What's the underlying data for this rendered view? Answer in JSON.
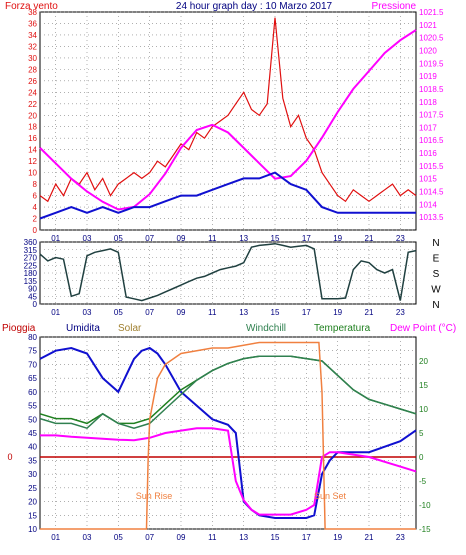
{
  "header": {
    "left_title": "Forza vento",
    "center_title": "24 hour graph day : 10 Marzo 2017",
    "right_title": "Pressione"
  },
  "colors": {
    "wind": "#e01010",
    "gust": "#e01010",
    "pressure": "#ff00ff",
    "avg_wind": "#1010d0",
    "direction": "#204040",
    "rain": "#c00000",
    "humidity": "#1010d0",
    "solar": "#f08040",
    "windchill": "#308050",
    "temperature": "#208020",
    "dewpoint": "#ff00ff",
    "grid": "#808080",
    "axis_text": "#000080"
  },
  "chart_data": [
    {
      "type": "line",
      "title": "24 hour graph day : 10 Marzo 2017",
      "x_ticks": [
        "01",
        "03",
        "05",
        "07",
        "09",
        "11",
        "13",
        "15",
        "17",
        "19",
        "21",
        "23"
      ],
      "xlim": [
        0,
        24
      ],
      "left_axis": {
        "label": "Forza vento",
        "ylim": [
          0,
          38
        ],
        "ticks": [
          "0",
          "2",
          "4",
          "6",
          "8",
          "10",
          "12",
          "14",
          "16",
          "18",
          "20",
          "22",
          "24",
          "26",
          "28",
          "30",
          "32",
          "34",
          "36",
          "38"
        ]
      },
      "right_axis": {
        "label": "Pressione",
        "ylim": [
          1013.0,
          1021.5
        ],
        "ticks": [
          "1013.5",
          "1014",
          "1014.5",
          "1015",
          "1015.5",
          "1016",
          "1016.5",
          "1017",
          "1017.5",
          "1018",
          "1018.5",
          "1019",
          "1019.5",
          "1020",
          "1020.5",
          "1021",
          "1021.5"
        ]
      },
      "series": [
        {
          "name": "Forza vento",
          "axis": "left",
          "style": "gust",
          "x": [
            0,
            0.5,
            1,
            1.5,
            2,
            2.5,
            3,
            3.5,
            4,
            4.5,
            5,
            5.5,
            6,
            6.5,
            7,
            7.5,
            8,
            8.5,
            9,
            9.5,
            10,
            10.5,
            11,
            11.5,
            12,
            12.5,
            13,
            13.5,
            14,
            14.5,
            15,
            15.5,
            16,
            16.5,
            17,
            17.5,
            18,
            18.5,
            19,
            19.5,
            20,
            20.5,
            21,
            21.5,
            22,
            22.5,
            23,
            23.5,
            24
          ],
          "values": [
            6,
            5,
            8,
            6,
            9,
            8,
            10,
            7,
            9,
            6,
            8,
            9,
            10,
            9,
            10,
            12,
            11,
            13,
            15,
            14,
            17,
            16,
            18,
            19,
            20,
            22,
            24,
            21,
            20,
            22,
            37,
            23,
            18,
            20,
            16,
            14,
            10,
            8,
            6,
            5,
            7,
            6,
            5,
            6,
            7,
            8,
            6,
            7,
            6
          ]
        },
        {
          "name": "Pressione",
          "axis": "right",
          "x": [
            0,
            1,
            2,
            3,
            4,
            5,
            6,
            7,
            8,
            9,
            10,
            11,
            12,
            13,
            14,
            15,
            16,
            17,
            18,
            19,
            20,
            21,
            22,
            23,
            24
          ],
          "values": [
            1016.2,
            1015.6,
            1015.0,
            1014.5,
            1014.1,
            1013.8,
            1013.9,
            1014.4,
            1015.2,
            1016.2,
            1016.9,
            1017.1,
            1016.8,
            1016.2,
            1015.6,
            1015.0,
            1015.1,
            1015.7,
            1016.6,
            1017.6,
            1018.5,
            1019.2,
            1019.9,
            1020.4,
            1020.8
          ]
        },
        {
          "name": "",
          "axis": "left",
          "style": "avg",
          "x": [
            0,
            1,
            2,
            3,
            4,
            5,
            6,
            7,
            8,
            9,
            10,
            11,
            12,
            13,
            14,
            15,
            16,
            17,
            18,
            19,
            20,
            21,
            22,
            23,
            24
          ],
          "values": [
            2,
            3,
            4,
            3,
            4,
            3,
            4,
            4,
            5,
            6,
            6,
            7,
            8,
            9,
            9,
            10,
            8,
            7,
            4,
            3,
            3,
            3,
            3,
            3,
            3
          ]
        }
      ]
    },
    {
      "type": "line",
      "x_ticks": [
        "01",
        "03",
        "05",
        "07",
        "09",
        "11",
        "13",
        "15",
        "17",
        "19",
        "21",
        "23"
      ],
      "xlim": [
        0,
        24
      ],
      "left_axis": {
        "ylim": [
          0,
          360
        ],
        "ticks": [
          "0",
          "45",
          "90",
          "135",
          "180",
          "225",
          "270",
          "315",
          "360"
        ]
      },
      "right_axis_labels": [
        "N",
        "W",
        "S",
        "E",
        "N"
      ],
      "series": [
        {
          "name": "",
          "x": [
            0,
            0.5,
            1,
            1.5,
            2,
            2.5,
            3,
            3.5,
            4,
            4.5,
            5,
            5.5,
            6,
            6.5,
            7,
            7.5,
            8,
            8.5,
            9,
            9.5,
            10,
            10.5,
            11,
            11.5,
            12,
            12.5,
            13,
            13.5,
            14,
            14.5,
            15,
            15.5,
            16,
            16.5,
            17,
            17.5,
            18,
            18.5,
            19,
            19.5,
            20,
            20.5,
            21,
            21.5,
            22,
            22.5,
            23,
            23.5,
            24
          ],
          "values": [
            290,
            250,
            270,
            260,
            45,
            60,
            280,
            300,
            310,
            320,
            300,
            40,
            30,
            20,
            35,
            50,
            70,
            90,
            110,
            130,
            150,
            160,
            180,
            200,
            210,
            220,
            240,
            330,
            340,
            345,
            350,
            340,
            330,
            335,
            340,
            320,
            30,
            30,
            30,
            35,
            200,
            250,
            240,
            200,
            180,
            200,
            20,
            300,
            310
          ]
        }
      ]
    },
    {
      "type": "line",
      "x_ticks": [
        "01",
        "03",
        "05",
        "07",
        "09",
        "11",
        "13",
        "15",
        "17",
        "19",
        "21",
        "23"
      ],
      "xlim": [
        0,
        24
      ],
      "left_axis": {
        "ylim": [
          10,
          80
        ],
        "ticks": [
          "10",
          "15",
          "20",
          "25",
          "30",
          "35",
          "40",
          "45",
          "50",
          "55",
          "60",
          "65",
          "70",
          "75",
          "80"
        ]
      },
      "right_axis": {
        "label": "Dew Point (°C)",
        "ylim": [
          -15,
          25
        ],
        "ticks": [
          "-15",
          "-10",
          "-5",
          "0",
          "5",
          "10",
          "15",
          "20"
        ]
      },
      "legend": [
        "Pioggia",
        "Umidita",
        "Solar",
        "Windchill",
        "Temperatura",
        "Dew Point (°C)"
      ],
      "annotations": [
        "Sun Rise",
        "Sun Set"
      ],
      "rain_zero_label": "0",
      "series": [
        {
          "name": "Umidita",
          "axis": "left",
          "x": [
            0,
            1,
            2,
            3,
            4,
            5,
            6,
            6.5,
            7,
            7.5,
            8,
            9,
            10,
            11,
            12,
            12.5,
            13,
            13.5,
            14,
            15,
            16,
            17,
            17.5,
            18,
            18.5,
            19,
            20,
            21,
            22,
            23,
            24
          ],
          "values": [
            72,
            75,
            76,
            74,
            65,
            60,
            72,
            75,
            76,
            74,
            70,
            60,
            55,
            50,
            48,
            45,
            20,
            17,
            15,
            14,
            14,
            14,
            15,
            30,
            35,
            38,
            38,
            38,
            40,
            42,
            46
          ]
        },
        {
          "name": "Temperatura",
          "axis": "right",
          "x": [
            0,
            1,
            2,
            3,
            4,
            5,
            6,
            7,
            8,
            9,
            10,
            11,
            12,
            13,
            14,
            15,
            16,
            17,
            18,
            19,
            20,
            21,
            22,
            23,
            24
          ],
          "values": [
            9,
            8,
            8,
            7,
            9,
            7,
            7,
            8,
            11,
            14,
            16,
            18,
            19.5,
            20.5,
            21,
            21,
            21,
            20.5,
            20,
            17,
            14,
            12,
            11,
            10,
            9
          ]
        },
        {
          "name": "Windchill",
          "axis": "right",
          "x": [
            0,
            1,
            2,
            3,
            4,
            5,
            6,
            7,
            8,
            9,
            10,
            11,
            12,
            13,
            14,
            15,
            16,
            17,
            18,
            19,
            20,
            21,
            22,
            23,
            24
          ],
          "values": [
            8,
            7,
            7,
            6,
            9,
            7,
            6,
            7,
            10,
            13,
            16,
            18,
            19.5,
            20.5,
            21,
            21,
            21,
            20.5,
            20,
            17,
            14,
            12,
            11,
            10,
            9
          ]
        },
        {
          "name": "Dew Point (°C)",
          "axis": "right",
          "x": [
            0,
            1,
            2,
            3,
            4,
            5,
            6,
            7,
            8,
            9,
            10,
            11,
            12,
            12.5,
            13,
            13.5,
            14,
            15,
            16,
            17,
            17.5,
            18,
            18.5,
            19,
            20,
            21,
            22,
            23,
            24
          ],
          "values": [
            4.5,
            4.5,
            4.2,
            4,
            3.8,
            3.6,
            3.5,
            4,
            5,
            5.5,
            6,
            6,
            5.5,
            -5,
            -9,
            -11,
            -12,
            -12,
            -12,
            -11,
            -10,
            0,
            1,
            1,
            0.5,
            0,
            -1,
            -2,
            -3
          ]
        },
        {
          "name": "Solar",
          "axis": "left",
          "x": [
            0,
            6.8,
            6.9,
            7,
            7.5,
            8,
            9,
            10,
            11,
            12,
            13,
            14,
            15,
            16,
            17,
            17.8,
            18,
            18.2,
            18.5,
            24
          ],
          "values": [
            10,
            10,
            35,
            50,
            65,
            70,
            74,
            75,
            76,
            76,
            77,
            78,
            78,
            78,
            78,
            78,
            60,
            10,
            10,
            10
          ]
        },
        {
          "name": "Pioggia",
          "axis": "rain",
          "values": [
            0
          ]
        }
      ]
    }
  ]
}
